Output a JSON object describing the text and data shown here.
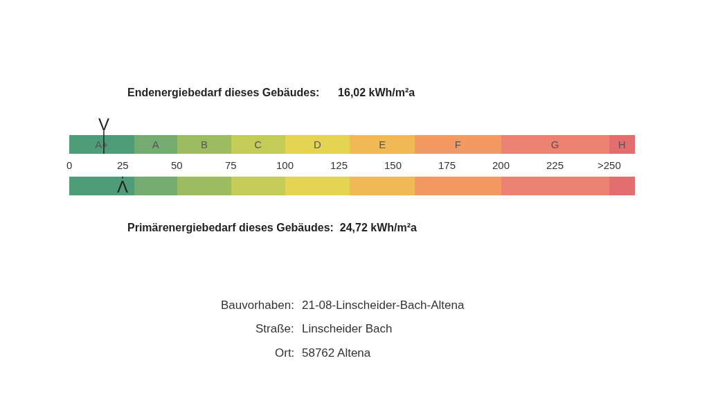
{
  "chart_data": {
    "type": "bar",
    "orientation": "horizontal",
    "stacked": true,
    "categories": [
      null,
      null
    ],
    "xlim": [
      0,
      262
    ],
    "xticks": [
      0,
      25,
      50,
      75,
      100,
      125,
      150,
      175,
      200,
      225,
      {
        "value": 250,
        "label": ">250"
      }
    ],
    "series": [
      {
        "name": "A+",
        "color": "#4f9c78",
        "values": [
          30,
          30
        ]
      },
      {
        "name": "A",
        "color": "#74ab70",
        "values": [
          20,
          20
        ]
      },
      {
        "name": "B",
        "color": "#9dbc62",
        "values": [
          25,
          25
        ]
      },
      {
        "name": "C",
        "color": "#c4cc58",
        "values": [
          25,
          25
        ]
      },
      {
        "name": "D",
        "color": "#e4d452",
        "values": [
          30,
          30
        ]
      },
      {
        "name": "E",
        "color": "#f1b955",
        "values": [
          30,
          30
        ]
      },
      {
        "name": "F",
        "color": "#f29a62",
        "values": [
          40,
          40
        ]
      },
      {
        "name": "G",
        "color": "#ec8272",
        "values": [
          50,
          50
        ]
      },
      {
        "name": "H",
        "color": "#e26e70",
        "values": [
          12,
          12
        ]
      }
    ],
    "ref_lines": [
      {
        "axis": "x",
        "value": 16.02,
        "label": "V",
        "color": "#222222"
      },
      {
        "axis": "x",
        "value": 24.72,
        "label": "Λ",
        "color": "#222222"
      }
    ],
    "annotations": [
      "Endenergiebedarf dieses Gebäudes:      16,02 kWh/m²a",
      "Primärenergiebedarf dieses Gebäudes:  24,72 kWh/m²a",
      "Bauvorhaben: 21-08-Linscheider-Bach-Altena",
      "Straße: Linscheider Bach",
      "Ort: 58762 Altena"
    ]
  }
}
